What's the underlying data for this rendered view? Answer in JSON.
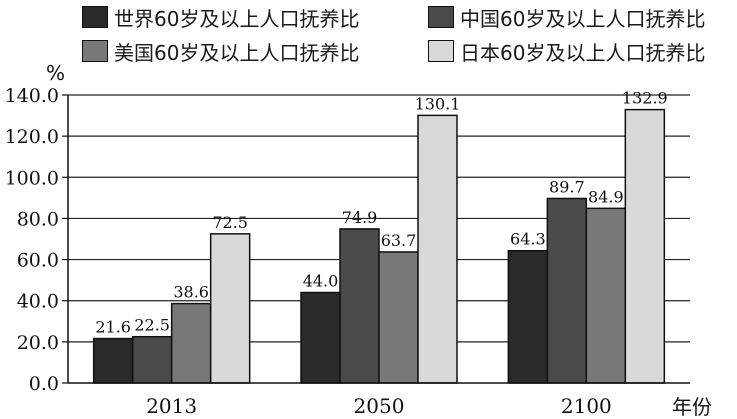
{
  "chart_data": {
    "type": "bar",
    "categories": [
      "2013",
      "2050",
      "2100"
    ],
    "series": [
      {
        "name": "世界60岁及以上人口抚养比",
        "values": [
          21.6,
          44.0,
          64.3
        ],
        "color": "#2a2a2a"
      },
      {
        "name": "中国60岁及以上人口抚养比",
        "values": [
          22.5,
          74.9,
          89.7
        ],
        "color": "#4a4a4a"
      },
      {
        "name": "美国60岁及以上人口抚养比",
        "values": [
          38.6,
          63.7,
          84.9
        ],
        "color": "#787878"
      },
      {
        "name": "日本60岁及以上人口抚养比",
        "values": [
          72.5,
          130.1,
          132.9
        ],
        "color": "#d9d9d9"
      }
    ],
    "data_labels": [
      [
        "21.6",
        "44.0",
        "64.3"
      ],
      [
        "22.5",
        "74.9",
        "89.7"
      ],
      [
        "38.6",
        "63.7",
        "84.9"
      ],
      [
        "72.5",
        "130.1",
        "132.9"
      ]
    ],
    "ylabel": "%",
    "xlabel": "年份",
    "ylim": [
      0,
      140
    ],
    "yticks": [
      "0.0",
      "20.0",
      "40.0",
      "60.0",
      "80.0",
      "100.0",
      "120.0",
      "140.0"
    ],
    "grid": true,
    "legend_position": "top"
  }
}
